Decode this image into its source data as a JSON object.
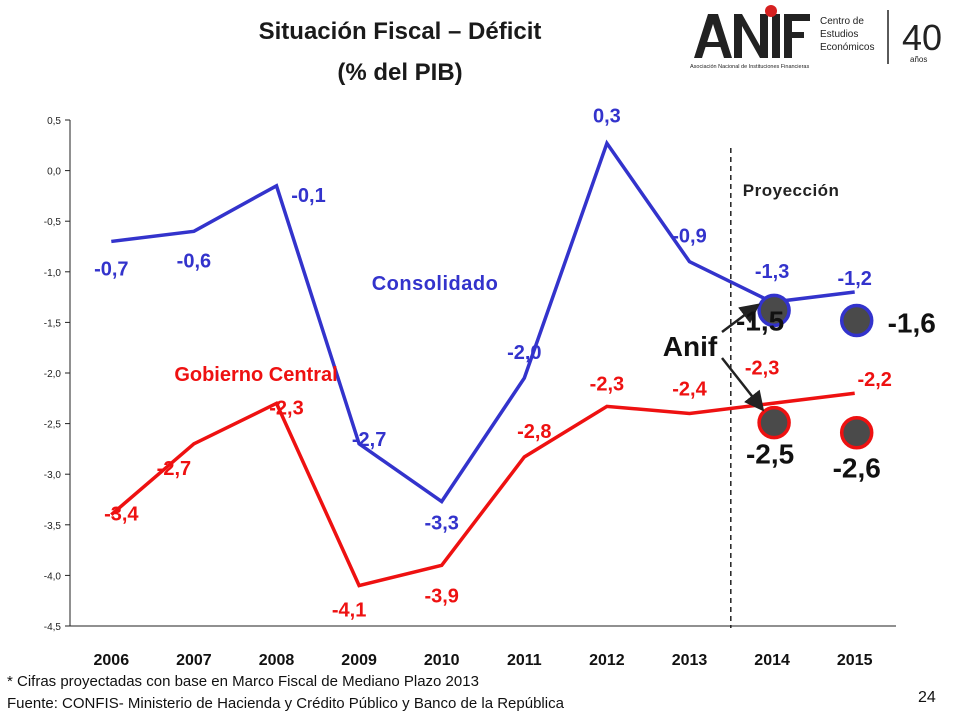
{
  "slide": {
    "title_line1": "Situación Fiscal – Déficit",
    "title_line2": "(% del PIB)",
    "logo_text": [
      "Centro de",
      "Estudios",
      "Económicos"
    ],
    "logo_name": "ANIF",
    "logo_subtitle": "Asociación Nacional de Instituciones Financieras",
    "logo_anniversary": "40",
    "logo_anniversary_word": "años",
    "footnote1": "* Cifras proyectadas con base en Marco Fiscal de Mediano Plazo 2013",
    "footnote2": "Fuente: CONFIS- Ministerio de Hacienda y Crédito Público y Banco de la República",
    "page_number": "24"
  },
  "colors": {
    "consolidado": "#3333cc",
    "gobierno_central": "#ee1111",
    "anif_marker": "#4a4a4a"
  },
  "chart_data": {
    "type": "line",
    "x": [
      "2006",
      "2007",
      "2008",
      "2009",
      "2010",
      "2011",
      "2012",
      "2013",
      "2014",
      "2015"
    ],
    "ylim": [
      -4.5,
      0.5
    ],
    "yticks": [
      "0,5",
      "0,0",
      "-0,5",
      "-1,0",
      "-1,5",
      "-2,0",
      "-2,5",
      "-3,0",
      "-3,5",
      "-4,0",
      "-4,5"
    ],
    "ytick_values": [
      0.5,
      0.0,
      -0.5,
      -1.0,
      -1.5,
      -2.0,
      -2.5,
      -3.0,
      -3.5,
      -4.0,
      -4.5
    ],
    "series": [
      {
        "name": "Consolidado",
        "values": [
          -0.7,
          -0.6,
          -0.15,
          -2.7,
          -3.27,
          -2.05,
          0.27,
          -0.9,
          -1.3,
          -1.2
        ],
        "labels": [
          "-0,7",
          "-0,6",
          "-0,1",
          "-2,7",
          "-3,3",
          "-2,0",
          "0,3",
          "-0,9",
          "-1,3",
          "-1,2"
        ]
      },
      {
        "name": "Gobierno Central",
        "values": [
          -3.4,
          -2.7,
          -2.3,
          -4.1,
          -3.9,
          -2.83,
          -2.33,
          -2.4,
          -2.3,
          -2.2
        ],
        "labels": [
          "-3,4",
          "-2,7",
          "-2,3",
          "-4,1",
          "-3,9",
          "-2,8",
          "-2,3",
          "-2,4",
          "-2,3",
          "-2,2"
        ]
      }
    ],
    "anif_projection": {
      "label": "Anif",
      "consolidado": {
        "x": [
          "2014",
          "2015"
        ],
        "values": [
          -1.5,
          -1.6
        ],
        "labels": [
          "-1,5",
          "-1,6"
        ]
      },
      "gobierno_central": {
        "x": [
          "2014",
          "2015"
        ],
        "values": [
          -2.5,
          -2.6
        ],
        "labels": [
          "-2,5",
          "-2,6"
        ]
      }
    },
    "projection_label": "Proyección",
    "projection_starts": "2014",
    "grid": false
  }
}
